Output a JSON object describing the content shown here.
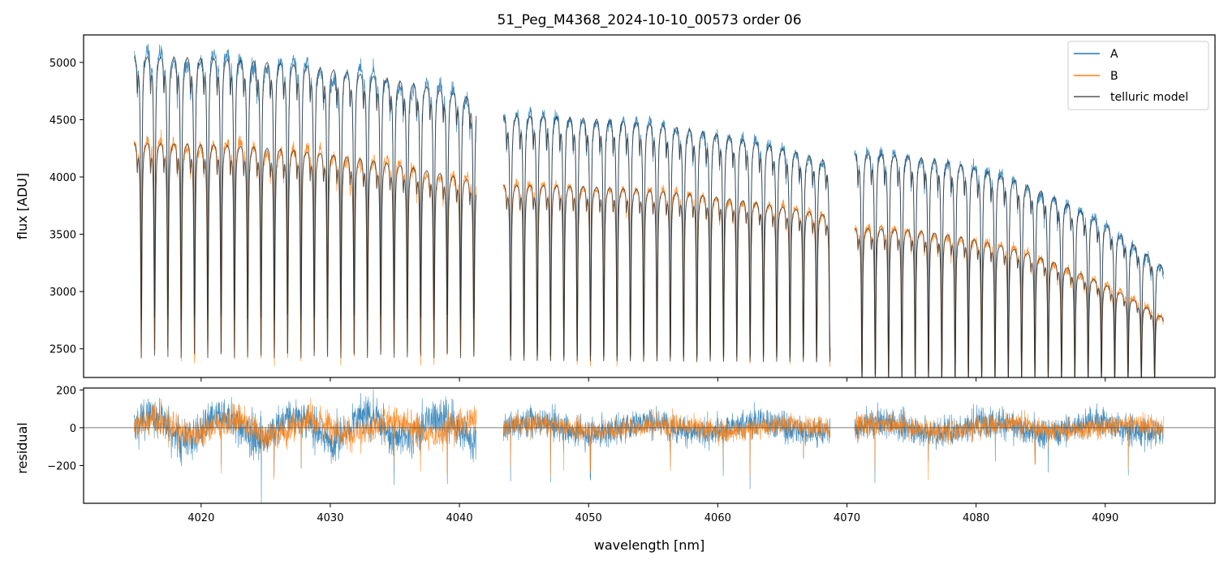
{
  "chart_data": [
    {
      "panel": "main",
      "type": "line",
      "title": "51_Peg_M4368_2024-10-10_00573  order 06",
      "ylabel": "flux [ADU]",
      "xlim": [
        4010.9,
        4098.5
      ],
      "ylim": [
        2250,
        5240
      ],
      "yticks": [
        2500,
        3000,
        3500,
        4000,
        4500,
        5000
      ],
      "legend": {
        "placement": "top-right",
        "entries": [
          "A",
          "B",
          "telluric model"
        ]
      },
      "grid": false,
      "segments": [
        {
          "x_range": [
            4014.8,
            4041.3
          ],
          "continuum_A": [
            5080,
            4640
          ],
          "continuum_B": [
            4320,
            3920
          ],
          "lines_A_min": 2750,
          "lines_B_min": 2420,
          "line_spacing": 1.03
        },
        {
          "x_range": [
            4043.4,
            4068.7
          ],
          "continuum_A": [
            4560,
            4080
          ],
          "continuum_B": [
            3950,
            3630
          ],
          "lines_A_min": 2420,
          "lines_B_min": 2380,
          "line_spacing": 1.03
        },
        {
          "x_range": [
            4070.6,
            4094.5
          ],
          "continuum_A": [
            4230,
            3050
          ],
          "continuum_B": [
            3570,
            2640
          ],
          "lines_A_min": 2230,
          "lines_B_min": 2230,
          "line_spacing": 1.03
        }
      ],
      "series": [
        {
          "name": "A",
          "color": "#1f77b4"
        },
        {
          "name": "B",
          "color": "#ff7f0e"
        },
        {
          "name": "telluric model",
          "color": "#444444"
        }
      ]
    },
    {
      "panel": "residual",
      "type": "line",
      "xlabel": "wavelength [nm]",
      "ylabel": "residual",
      "xlim": [
        4010.9,
        4098.5
      ],
      "ylim": [
        -400,
        210
      ],
      "yticks": [
        -200,
        0,
        200
      ],
      "xticks": [
        4020,
        4030,
        4040,
        4050,
        4060,
        4070,
        4080,
        4090
      ],
      "zero_line": 0,
      "series": [
        {
          "name": "A",
          "color": "#1f77b4",
          "noise_amplitude": 110
        },
        {
          "name": "B",
          "color": "#ff7f0e",
          "noise_amplitude": 70
        }
      ]
    }
  ],
  "labels": {
    "title": "51_Peg_M4368_2024-10-10_00573  order 06",
    "ylabel_top": "flux [ADU]",
    "ylabel_bottom": "residual",
    "xlabel": "wavelength [nm]",
    "legend_a": "A",
    "legend_b": "B",
    "legend_model": "telluric model"
  }
}
